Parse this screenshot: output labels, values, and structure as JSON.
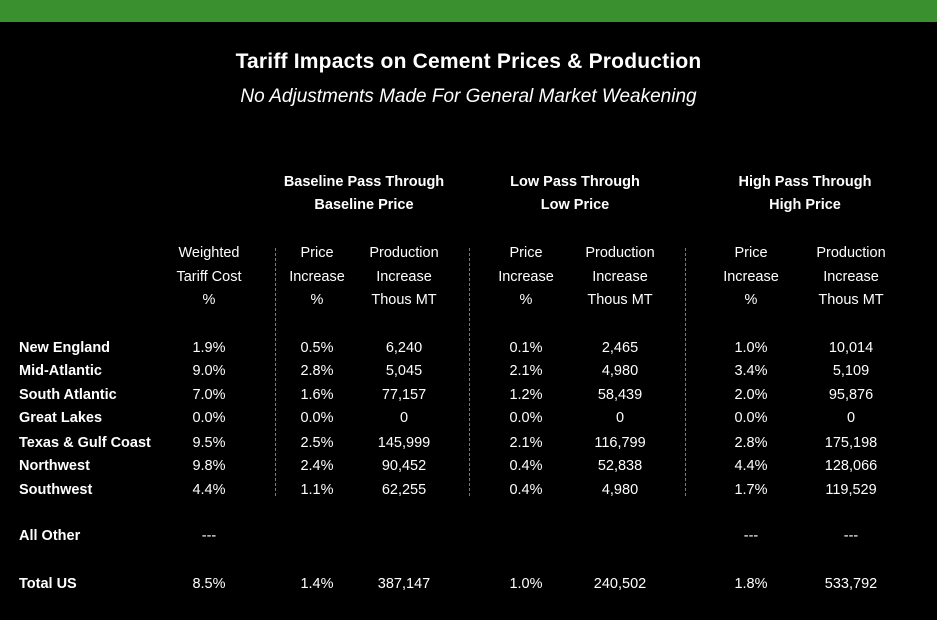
{
  "colors": {
    "accent_bar": "#3a8f2f",
    "background": "#000000",
    "divider": "#2fa84f",
    "text": "#ffffff"
  },
  "title": "Tariff Impacts on Cement Prices & Production",
  "subtitle": "No Adjustments Made For General Market Weakening",
  "groups": [
    {
      "line1": "Baseline Pass Through",
      "line2": "Baseline Price"
    },
    {
      "line1": "Low Pass Through",
      "line2": "Low Price"
    },
    {
      "line1": "High Pass Through",
      "line2": "High Price"
    }
  ],
  "columns": [
    {
      "l1": "Weighted",
      "l2": "Tariff Cost",
      "l3": "%"
    },
    {
      "l1": "Price",
      "l2": "Increase",
      "l3": "%"
    },
    {
      "l1": "Production",
      "l2": "Increase",
      "l3": "Thous MT"
    },
    {
      "l1": "Price",
      "l2": "Increase",
      "l3": "%"
    },
    {
      "l1": "Production",
      "l2": "Increase",
      "l3": "Thous MT"
    },
    {
      "l1": "Price",
      "l2": "Increase",
      "l3": "%"
    },
    {
      "l1": "Production",
      "l2": "Increase",
      "l3": "Thous MT"
    }
  ],
  "rows": [
    {
      "label": "New England",
      "values": [
        "1.9%",
        "0.5%",
        "6,240",
        "0.1%",
        "2,465",
        "1.0%",
        "10,014"
      ]
    },
    {
      "label": "Mid-Atlantic",
      "values": [
        "9.0%",
        "2.8%",
        "5,045",
        "2.1%",
        "4,980",
        "3.4%",
        "5,109"
      ]
    },
    {
      "label": "South Atlantic",
      "values": [
        "7.0%",
        "1.6%",
        "77,157",
        "1.2%",
        "58,439",
        "2.0%",
        "95,876"
      ]
    },
    {
      "label": "Great Lakes",
      "values": [
        "0.0%",
        "0.0%",
        "0",
        "0.0%",
        "0",
        "0.0%",
        "0"
      ]
    },
    {
      "label": "Texas & Gulf Coast",
      "values": [
        "9.5%",
        "2.5%",
        "145,999",
        "2.1%",
        "116,799",
        "2.8%",
        "175,198"
      ]
    },
    {
      "label": "Northwest",
      "values": [
        "9.8%",
        "2.4%",
        "90,452",
        "0.4%",
        "52,838",
        "4.4%",
        "128,066"
      ]
    },
    {
      "label": "Southwest",
      "values": [
        "4.4%",
        "1.1%",
        "62,255",
        "0.4%",
        "4,980",
        "1.7%",
        "119,529"
      ]
    },
    {
      "label": "All Other",
      "values": [
        "---",
        "",
        "",
        "",
        "",
        "---",
        "---"
      ]
    },
    {
      "label": "Total US",
      "values": [
        "8.5%",
        "1.4%",
        "387,147",
        "1.0%",
        "240,502",
        "1.8%",
        "533,792"
      ]
    }
  ]
}
